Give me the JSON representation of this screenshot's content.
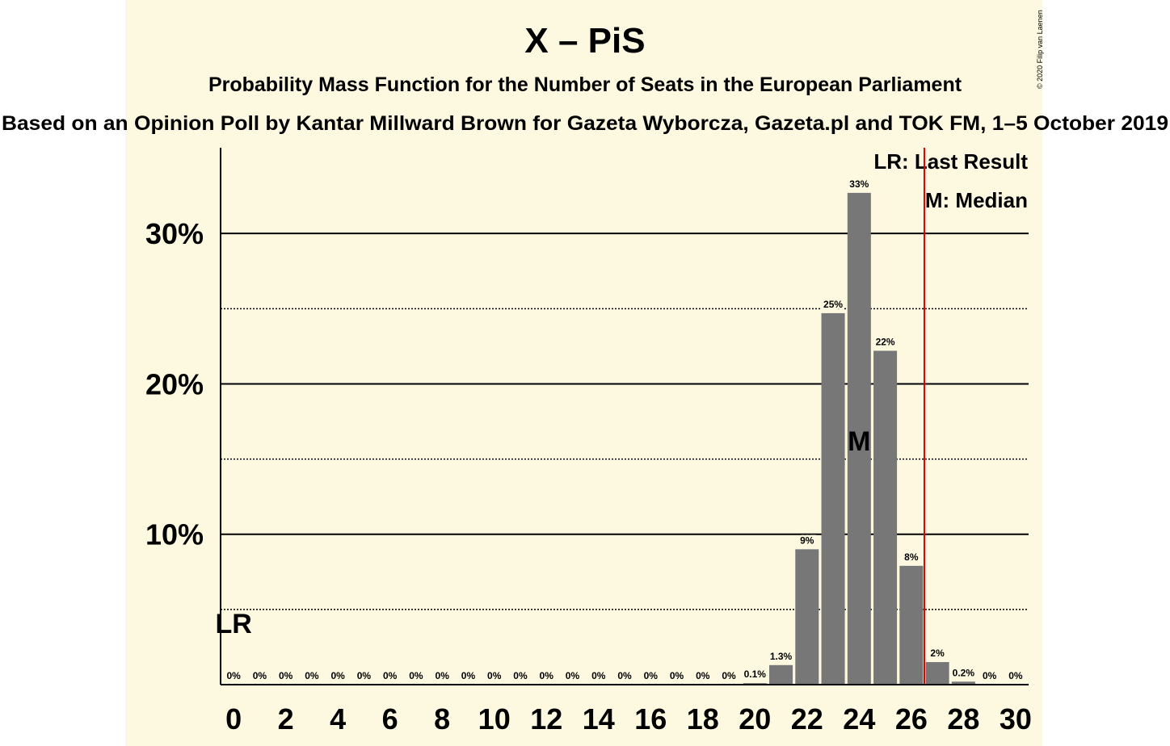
{
  "chart_data": {
    "type": "bar",
    "title": "X – PiS",
    "subtitle": "Probability Mass Function for the Number of Seats in the European Parliament",
    "caption": "Based on an Opinion Poll by Kantar Millward Brown for Gazeta Wyborcza, Gazeta.pl and TOK FM, 1–5 October 2019",
    "copyright": "© 2020 Filip van Laenen",
    "x": [
      0,
      1,
      2,
      3,
      4,
      5,
      6,
      7,
      8,
      9,
      10,
      11,
      12,
      13,
      14,
      15,
      16,
      17,
      18,
      19,
      20,
      21,
      22,
      23,
      24,
      25,
      26,
      27,
      28,
      29,
      30
    ],
    "values": [
      0,
      0,
      0,
      0,
      0,
      0,
      0,
      0,
      0,
      0,
      0,
      0,
      0,
      0,
      0,
      0,
      0,
      0,
      0,
      0,
      0.1,
      1.3,
      9,
      24.7,
      32.7,
      22.2,
      7.9,
      1.5,
      0.2,
      0,
      0
    ],
    "value_labels": [
      "0%",
      "0%",
      "0%",
      "0%",
      "0%",
      "0%",
      "0%",
      "0%",
      "0%",
      "0%",
      "0%",
      "0%",
      "0%",
      "0%",
      "0%",
      "0%",
      "0%",
      "0%",
      "0%",
      "0%",
      "0.1%",
      "1.3%",
      "9%",
      "25%",
      "33%",
      "22%",
      "8%",
      "2%",
      "0.2%",
      "0%",
      "0%"
    ],
    "color": "#777777",
    "xlim": [
      -0.5,
      30.5
    ],
    "xticks": [
      0,
      2,
      4,
      6,
      8,
      10,
      12,
      14,
      16,
      18,
      20,
      22,
      24,
      26,
      28,
      30
    ],
    "ylim": [
      0,
      35.7
    ],
    "yticks": [
      {
        "value": 10,
        "label": "10%"
      },
      {
        "value": 20,
        "label": "20%"
      },
      {
        "value": 30,
        "label": "30%"
      }
    ],
    "minor_yticks": [
      5,
      15,
      25
    ],
    "grid": true,
    "last_result": 0,
    "last_result_label": "LR",
    "median": 24,
    "median_label": "M",
    "majority_line": 26.5,
    "majority_color": "#e00000",
    "legend": [
      "LR: Last Result",
      "M: Median"
    ]
  }
}
